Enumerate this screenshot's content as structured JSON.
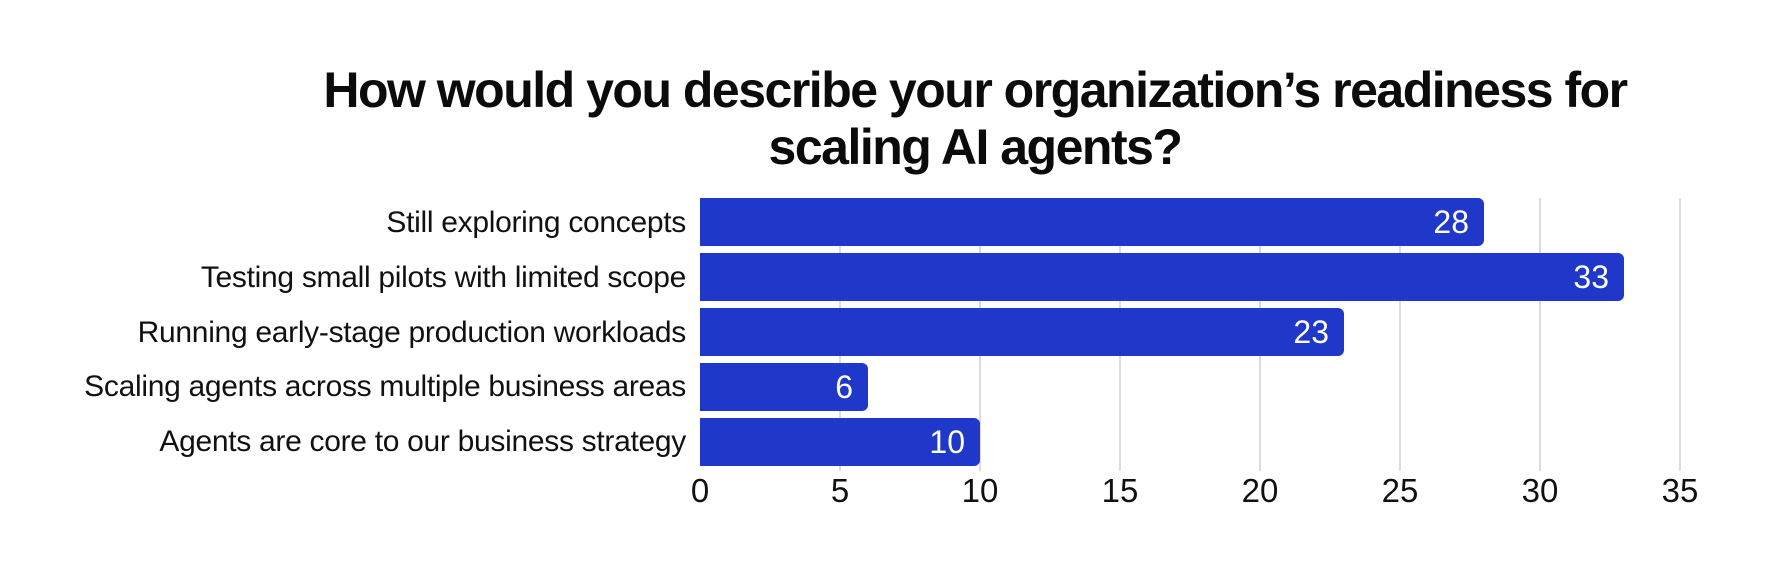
{
  "chart_data": {
    "type": "bar",
    "orientation": "horizontal",
    "title": "How would you describe your organization’s readiness for scaling AI agents?",
    "title_lines": [
      "How would you describe your organization’s readiness for",
      "scaling AI agents?"
    ],
    "categories": [
      "Still exploring concepts",
      "Testing small pilots with limited scope",
      "Running early-stage production workloads",
      "Scaling agents across multiple business areas",
      "Agents are core to our business strategy"
    ],
    "values": [
      28,
      33,
      23,
      6,
      10
    ],
    "value_labels": [
      "28",
      "33",
      "23",
      "6",
      "10"
    ],
    "x_ticks": [
      "0",
      "5",
      "10",
      "15",
      "20",
      "25",
      "30",
      "35"
    ],
    "xlim": [
      0,
      35
    ],
    "grid": true,
    "legend": false,
    "value_label_position": "inside-end",
    "colors": {
      "bar": "#1F38C9",
      "gridline": "#dcdcdc",
      "value_label": "#ffffff",
      "text": "#111111",
      "title": "#0b0b0b",
      "background": "#ffffff"
    }
  }
}
